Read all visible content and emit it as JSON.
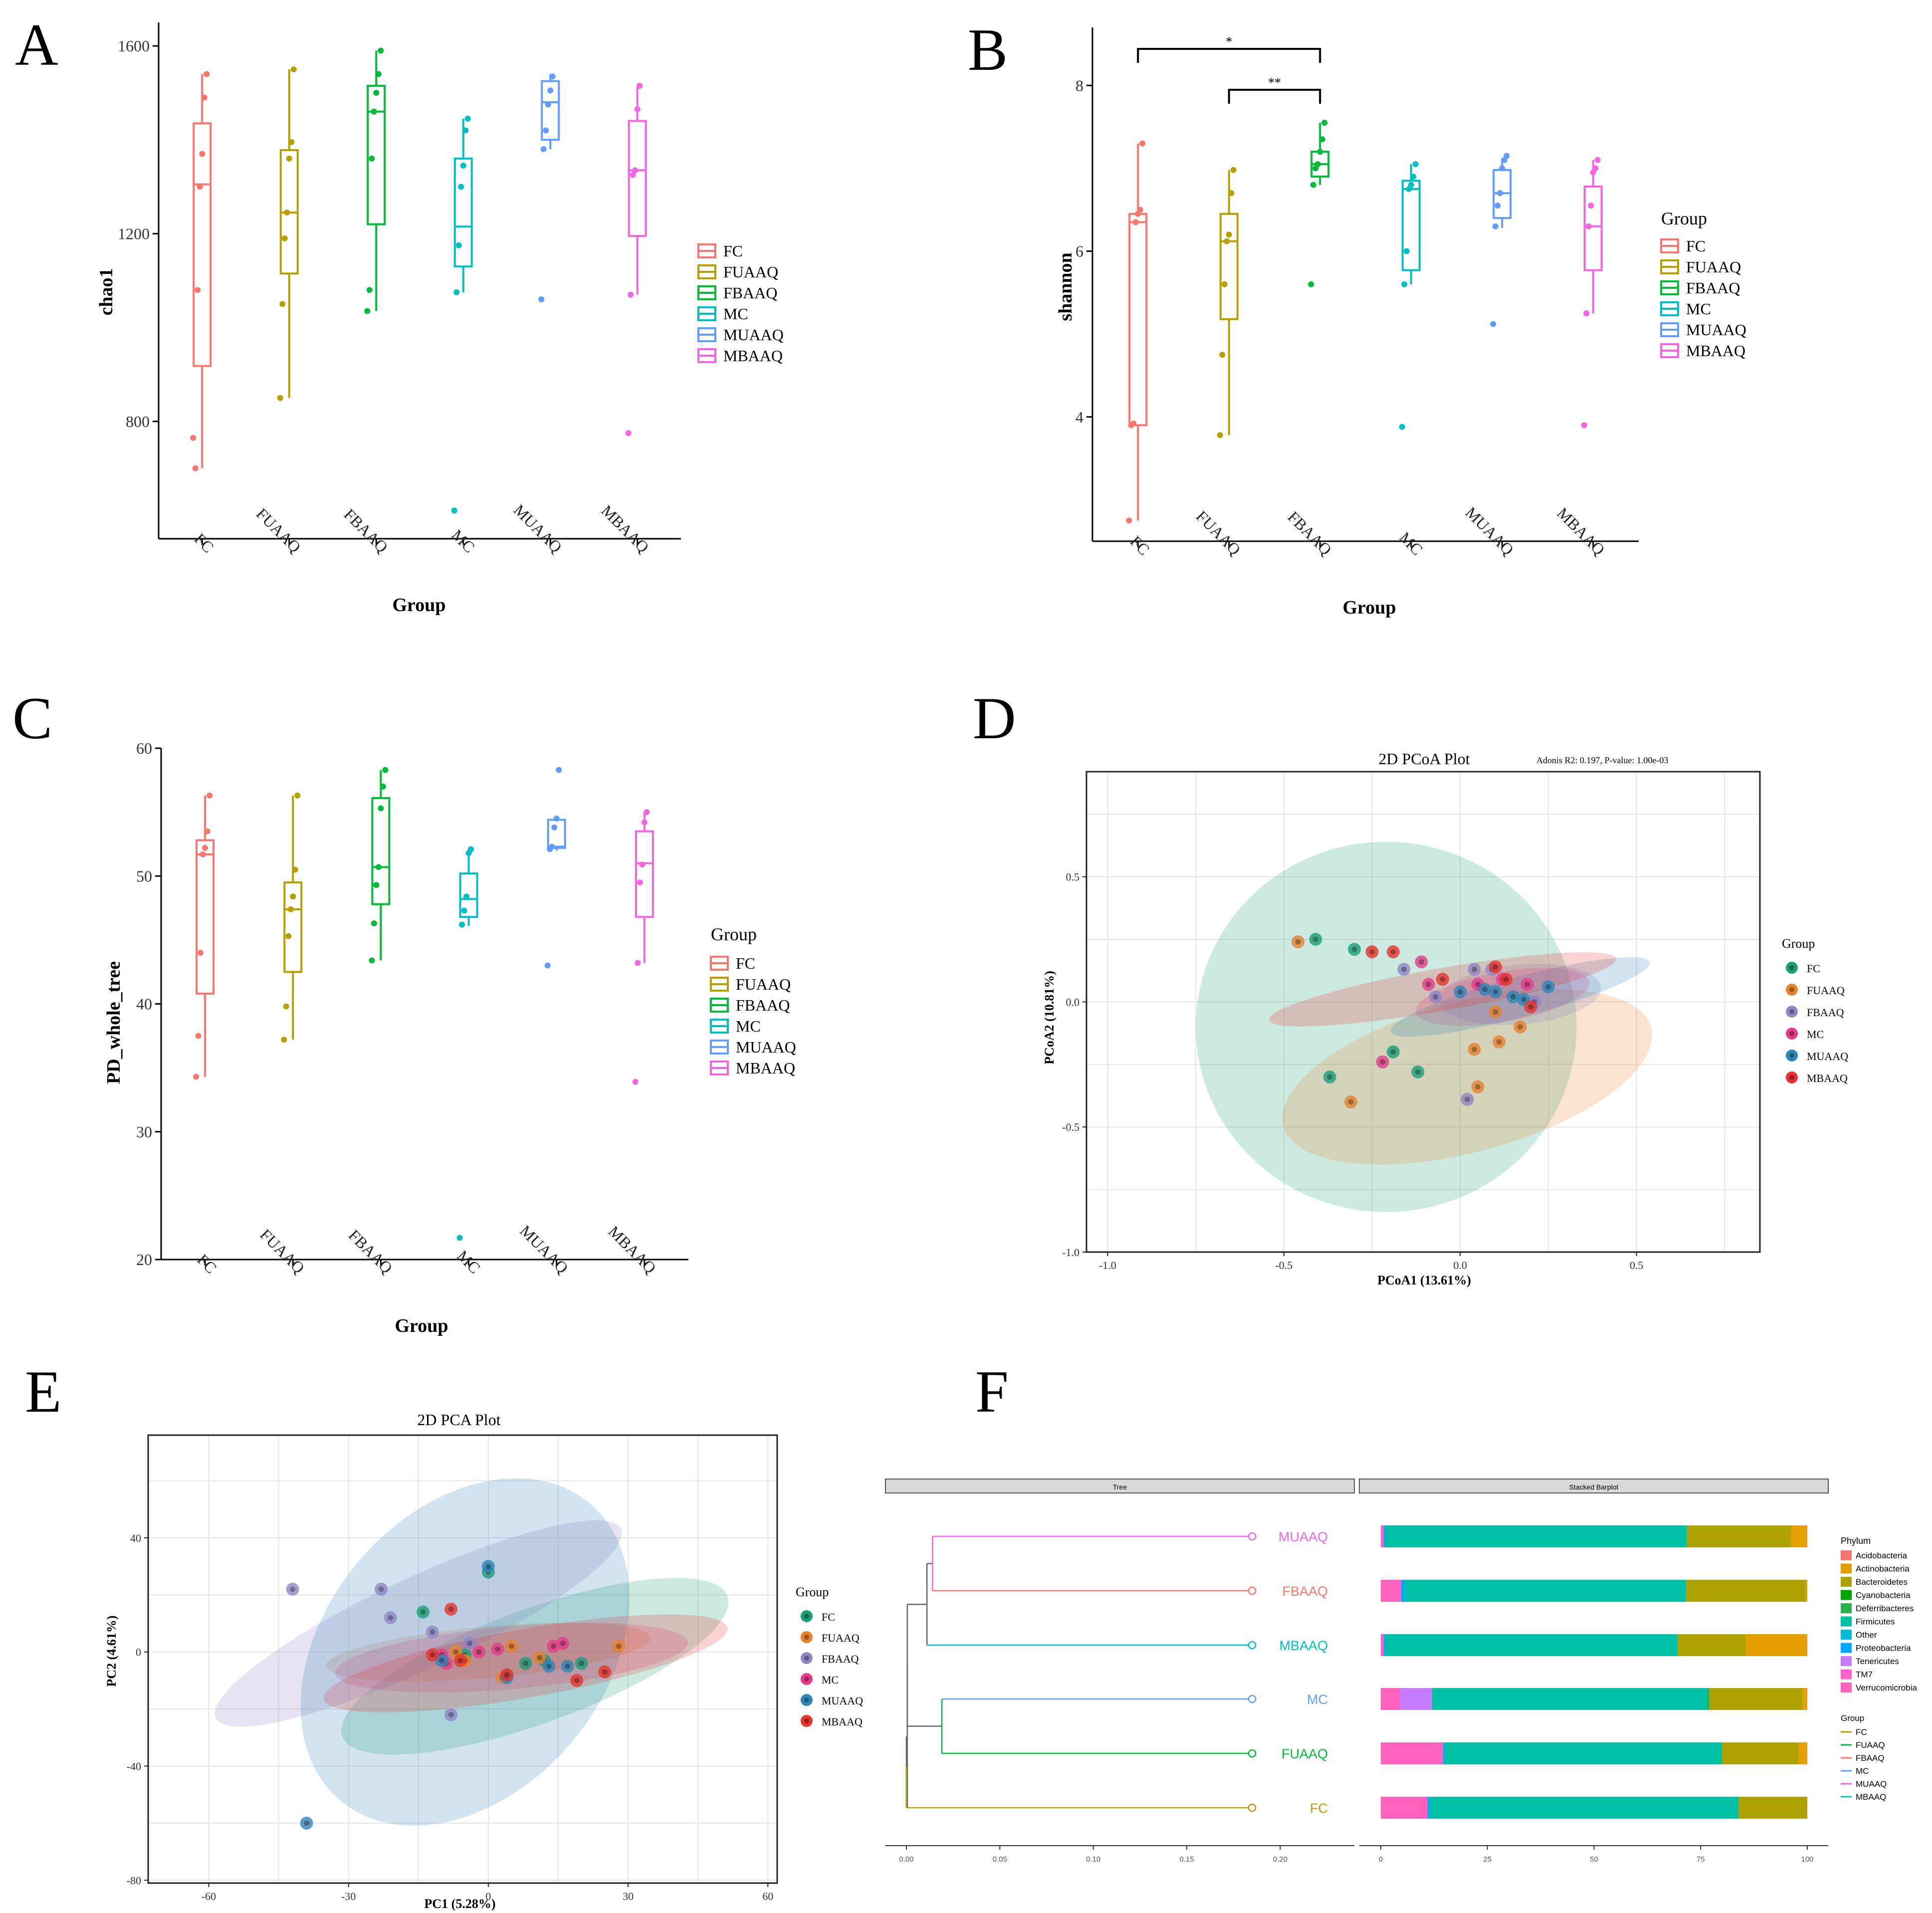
{
  "groups": [
    "FC",
    "FUAAQ",
    "FBAAQ",
    "MC",
    "MUAAQ",
    "MBAAQ"
  ],
  "group_colors": {
    "FC": "#F8766D",
    "FUAAQ": "#B79F00",
    "FBAAQ": "#00BA38",
    "MC": "#00BFC4",
    "MUAAQ": "#619CFF",
    "MBAAQ": "#F564E3"
  },
  "pc_colors": {
    "FC": "#1B9E77",
    "FUAAQ": "#E6822E",
    "FBAAQ": "#8E86C6",
    "MC": "#E33C89",
    "MUAAQ": "#2E86B8",
    "MBAAQ": "#E6332C"
  },
  "panel_labels": {
    "A": "A",
    "B": "B",
    "C": "C",
    "D": "D",
    "E": "E",
    "F": "F"
  },
  "legend_title": "Group",
  "chart_data": [
    {
      "id": "A",
      "type": "box",
      "xlabel": "Group",
      "ylabel": "chao1",
      "ylim": [
        550,
        1650
      ],
      "yticks": [
        800,
        1200,
        1600
      ],
      "categories": [
        "FC",
        "FUAAQ",
        "FBAAQ",
        "MC",
        "MUAAQ",
        "MBAAQ"
      ],
      "boxes": [
        {
          "q1": 918,
          "median": 1305,
          "q3": 1435,
          "whisker_low": 700,
          "whisker_high": 1540,
          "points": [
            765,
            700,
            1080,
            1300,
            1370,
            1490,
            1540
          ]
        },
        {
          "q1": 1115,
          "median": 1245,
          "q3": 1378,
          "whisker_low": 850,
          "whisker_high": 1550,
          "points": [
            850,
            1050,
            1190,
            1245,
            1360,
            1395,
            1550
          ]
        },
        {
          "q1": 1220,
          "median": 1460,
          "q3": 1515,
          "whisker_low": 1035,
          "whisker_high": 1590,
          "points": [
            1035,
            1080,
            1360,
            1460,
            1500,
            1540,
            1590
          ]
        },
        {
          "q1": 1130,
          "median": 1215,
          "q3": 1360,
          "whisker_low": 1075,
          "whisker_high": 1445,
          "points": [
            610,
            1075,
            1175,
            1300,
            1345,
            1420,
            1445
          ]
        },
        {
          "q1": 1400,
          "median": 1480,
          "q3": 1525,
          "whisker_low": 1380,
          "whisker_high": 1540,
          "points": [
            1060,
            1380,
            1420,
            1475,
            1505,
            1535
          ]
        },
        {
          "q1": 1195,
          "median": 1335,
          "q3": 1440,
          "whisker_low": 1070,
          "whisker_high": 1515,
          "points": [
            775,
            1070,
            1325,
            1335,
            1465,
            1515
          ]
        }
      ]
    },
    {
      "id": "B",
      "type": "box",
      "xlabel": "Group",
      "ylabel": "shannon",
      "ylim": [
        2.5,
        8.7
      ],
      "yticks": [
        4,
        6,
        8
      ],
      "categories": [
        "FC",
        "FUAAQ",
        "FBAAQ",
        "MC",
        "MUAAQ",
        "MBAAQ"
      ],
      "boxes": [
        {
          "q1": 3.9,
          "median": 6.35,
          "q3": 6.45,
          "whisker_low": 2.75,
          "whisker_high": 7.3,
          "points": [
            2.75,
            3.9,
            3.92,
            6.35,
            6.45,
            6.5,
            7.3
          ]
        },
        {
          "q1": 5.18,
          "median": 6.12,
          "q3": 6.45,
          "whisker_low": 3.78,
          "whisker_high": 6.98,
          "points": [
            3.78,
            4.75,
            5.6,
            6.12,
            6.2,
            6.7,
            6.98
          ]
        },
        {
          "q1": 6.9,
          "median": 7.05,
          "q3": 7.2,
          "whisker_low": 6.8,
          "whisker_high": 7.55,
          "points": [
            5.6,
            6.8,
            7.0,
            7.05,
            7.2,
            7.35,
            7.55
          ]
        },
        {
          "q1": 5.77,
          "median": 6.75,
          "q3": 6.85,
          "whisker_low": 5.6,
          "whisker_high": 7.05,
          "points": [
            3.88,
            5.6,
            6.0,
            6.75,
            6.8,
            6.9,
            7.05
          ]
        },
        {
          "q1": 6.4,
          "median": 6.7,
          "q3": 6.98,
          "whisker_low": 6.28,
          "whisker_high": 7.12,
          "points": [
            5.12,
            6.3,
            6.55,
            6.7,
            7.0,
            7.1,
            7.15
          ]
        },
        {
          "q1": 5.77,
          "median": 6.3,
          "q3": 6.78,
          "whisker_low": 5.25,
          "whisker_high": 7.1,
          "points": [
            3.9,
            5.25,
            6.3,
            6.55,
            6.95,
            7.0,
            7.1
          ]
        }
      ],
      "significance": [
        {
          "from": "FC",
          "to": "FBAAQ",
          "label": "*"
        },
        {
          "from": "FUAAQ",
          "to": "FBAAQ",
          "label": "**"
        }
      ]
    },
    {
      "id": "C",
      "type": "box",
      "xlabel": "Group",
      "ylabel": "PD_whole_tree",
      "ylim": [
        20,
        60
      ],
      "yticks": [
        20,
        30,
        40,
        50,
        60
      ],
      "categories": [
        "FC",
        "FUAAQ",
        "FBAAQ",
        "MC",
        "MUAAQ",
        "MBAAQ"
      ],
      "boxes": [
        {
          "q1": 40.8,
          "median": 51.7,
          "q3": 52.8,
          "whisker_low": 34.3,
          "whisker_high": 56.3,
          "points": [
            34.3,
            37.5,
            44.0,
            51.7,
            52.2,
            53.5,
            56.3
          ]
        },
        {
          "q1": 42.5,
          "median": 47.4,
          "q3": 49.5,
          "whisker_low": 37.2,
          "whisker_high": 56.3,
          "points": [
            37.2,
            39.8,
            45.3,
            47.4,
            48.4,
            50.5,
            56.3
          ]
        },
        {
          "q1": 47.8,
          "median": 50.7,
          "q3": 56.1,
          "whisker_low": 43.4,
          "whisker_high": 58.3,
          "points": [
            43.4,
            46.3,
            49.3,
            50.7,
            55.3,
            57.0,
            58.3
          ]
        },
        {
          "q1": 46.8,
          "median": 48.2,
          "q3": 50.2,
          "whisker_low": 46.1,
          "whisker_high": 52.1,
          "points": [
            21.7,
            46.2,
            47.3,
            48.4,
            51.8,
            52.1
          ]
        },
        {
          "q1": 52.2,
          "median": 52.3,
          "q3": 54.4,
          "whisker_low": 52.0,
          "whisker_high": 54.6,
          "points": [
            43.0,
            52.1,
            52.3,
            53.8,
            54.5,
            58.3
          ]
        },
        {
          "q1": 46.8,
          "median": 51.0,
          "q3": 53.5,
          "whisker_low": 43.2,
          "whisker_high": 55.0,
          "points": [
            33.9,
            43.2,
            49.5,
            50.9,
            54.2,
            55.0
          ]
        }
      ]
    },
    {
      "id": "D",
      "type": "scatter",
      "title": "2D PCoA Plot",
      "annotation": "Adonis R2: 0.197, P-value: 1.00e-03",
      "xlabel": "PCoA1 (13.61%)",
      "ylabel": "PCoA2 (10.81%)",
      "xlim": [
        -1.06,
        0.85
      ],
      "ylim": [
        -1.0,
        0.92
      ],
      "xticks": [
        -1.0,
        -0.5,
        0.0,
        0.5
      ],
      "yticks": [
        -1.0,
        -0.5,
        0.0,
        0.5
      ],
      "ellipses": [
        {
          "group": "FC",
          "cx": -0.21,
          "cy": -0.1,
          "rx": 0.54,
          "ry": 0.74,
          "angle": 0
        },
        {
          "group": "FUAAQ",
          "cx": 0.02,
          "cy": -0.3,
          "rx": 0.54,
          "ry": 0.3,
          "angle": -15
        },
        {
          "group": "FBAAQ",
          "cx": 0.17,
          "cy": 0.03,
          "rx": 0.23,
          "ry": 0.12,
          "angle": -5
        },
        {
          "group": "MC",
          "cx": 0.12,
          "cy": 0.02,
          "rx": 0.25,
          "ry": 0.1,
          "angle": -10
        },
        {
          "group": "MUAAQ",
          "cx": 0.17,
          "cy": 0.02,
          "rx": 0.38,
          "ry": 0.08,
          "angle": -15
        },
        {
          "group": "MBAAQ",
          "cx": -0.05,
          "cy": 0.05,
          "rx": 0.5,
          "ry": 0.085,
          "angle": -10
        }
      ],
      "points": [
        {
          "group": "FC",
          "x": -0.41,
          "y": 0.25
        },
        {
          "group": "FC",
          "x": -0.3,
          "y": 0.21
        },
        {
          "group": "FC",
          "x": -0.19,
          "y": -0.2
        },
        {
          "group": "FC",
          "x": -0.12,
          "y": -0.28
        },
        {
          "group": "FC",
          "x": -0.37,
          "y": -0.3
        },
        {
          "group": "FUAAQ",
          "x": -0.46,
          "y": 0.24
        },
        {
          "group": "FUAAQ",
          "x": 0.17,
          "y": -0.1
        },
        {
          "group": "FUAAQ",
          "x": 0.11,
          "y": -0.16
        },
        {
          "group": "FUAAQ",
          "x": 0.04,
          "y": -0.19
        },
        {
          "group": "FUAAQ",
          "x": 0.05,
          "y": -0.34
        },
        {
          "group": "FUAAQ",
          "x": -0.31,
          "y": -0.4
        },
        {
          "group": "FUAAQ",
          "x": 0.1,
          "y": -0.04
        },
        {
          "group": "FBAAQ",
          "x": -0.16,
          "y": 0.13
        },
        {
          "group": "FBAAQ",
          "x": -0.07,
          "y": 0.02
        },
        {
          "group": "FBAAQ",
          "x": 0.02,
          "y": -0.39
        },
        {
          "group": "FBAAQ",
          "x": 0.04,
          "y": 0.13
        },
        {
          "group": "FBAAQ",
          "x": 0.09,
          "y": 0.13
        },
        {
          "group": "FBAAQ",
          "x": 0.21,
          "y": 0.0
        },
        {
          "group": "MC",
          "x": -0.11,
          "y": 0.16
        },
        {
          "group": "MC",
          "x": -0.09,
          "y": 0.07
        },
        {
          "group": "MC",
          "x": 0.05,
          "y": 0.07
        },
        {
          "group": "MC",
          "x": 0.12,
          "y": 0.09
        },
        {
          "group": "MC",
          "x": 0.19,
          "y": 0.07
        },
        {
          "group": "MC",
          "x": -0.22,
          "y": -0.24
        },
        {
          "group": "MUAAQ",
          "x": 0.1,
          "y": 0.04
        },
        {
          "group": "MUAAQ",
          "x": 0.15,
          "y": 0.02
        },
        {
          "group": "MUAAQ",
          "x": 0.25,
          "y": 0.06
        },
        {
          "group": "MUAAQ",
          "x": 0.0,
          "y": 0.04
        },
        {
          "group": "MUAAQ",
          "x": 0.07,
          "y": 0.05
        },
        {
          "group": "MUAAQ",
          "x": 0.18,
          "y": 0.01
        },
        {
          "group": "MBAAQ",
          "x": -0.25,
          "y": 0.2
        },
        {
          "group": "MBAAQ",
          "x": -0.19,
          "y": 0.2
        },
        {
          "group": "MBAAQ",
          "x": -0.05,
          "y": 0.09
        },
        {
          "group": "MBAAQ",
          "x": 0.1,
          "y": 0.14
        },
        {
          "group": "MBAAQ",
          "x": 0.13,
          "y": 0.09
        },
        {
          "group": "MBAAQ",
          "x": 0.2,
          "y": -0.02
        }
      ]
    },
    {
      "id": "E",
      "type": "scatter",
      "title": "2D PCA Plot",
      "xlabel": "PC1 (5.28%)",
      "ylabel": "PC2 (4.61%)",
      "xlim": [
        -73,
        62
      ],
      "ylim": [
        -81,
        76
      ],
      "xticks": [
        -60,
        -30,
        0,
        30,
        60
      ],
      "yticks": [
        -80,
        -40,
        0,
        40
      ],
      "ellipses": [
        {
          "group": "FC",
          "cx": 10,
          "cy": -5,
          "rx": 44,
          "ry": 20,
          "angle": -20
        },
        {
          "group": "FUAAQ",
          "cx": 0,
          "cy": 0,
          "rx": 35,
          "ry": 9,
          "angle": -5
        },
        {
          "group": "FBAAQ",
          "cx": -15,
          "cy": 10,
          "rx": 48,
          "ry": 16,
          "angle": -25
        },
        {
          "group": "MC",
          "cx": 5,
          "cy": -2,
          "rx": 38,
          "ry": 11,
          "angle": -5
        },
        {
          "group": "MUAAQ",
          "cx": -5,
          "cy": 0,
          "rx": 30,
          "ry": 68,
          "angle": 40
        },
        {
          "group": "MBAAQ",
          "cx": 8,
          "cy": -4,
          "rx": 44,
          "ry": 12,
          "angle": -10
        }
      ],
      "points": [
        {
          "group": "FC",
          "x": -14,
          "y": 14
        },
        {
          "group": "FC",
          "x": 0,
          "y": 28
        },
        {
          "group": "FC",
          "x": 8,
          "y": -4
        },
        {
          "group": "FC",
          "x": 12,
          "y": -3
        },
        {
          "group": "FC",
          "x": 20,
          "y": -4
        },
        {
          "group": "FC",
          "x": -5,
          "y": -1
        },
        {
          "group": "FUAAQ",
          "x": 28,
          "y": 2
        },
        {
          "group": "FUAAQ",
          "x": 5,
          "y": 2
        },
        {
          "group": "FUAAQ",
          "x": -5,
          "y": -3
        },
        {
          "group": "FUAAQ",
          "x": 11,
          "y": -2
        },
        {
          "group": "FUAAQ",
          "x": -7,
          "y": 0
        },
        {
          "group": "FUAAQ",
          "x": 3,
          "y": -9
        },
        {
          "group": "FBAAQ",
          "x": -42,
          "y": 22
        },
        {
          "group": "FBAAQ",
          "x": -23,
          "y": 22
        },
        {
          "group": "FBAAQ",
          "x": -21,
          "y": 12
        },
        {
          "group": "FBAAQ",
          "x": -12,
          "y": 7
        },
        {
          "group": "FBAAQ",
          "x": -8,
          "y": -22
        },
        {
          "group": "FBAAQ",
          "x": -4,
          "y": 3
        },
        {
          "group": "MC",
          "x": -10,
          "y": -1
        },
        {
          "group": "MC",
          "x": -2,
          "y": 0
        },
        {
          "group": "MC",
          "x": 2,
          "y": 1
        },
        {
          "group": "MC",
          "x": 14,
          "y": 2
        },
        {
          "group": "MC",
          "x": 16,
          "y": 3
        },
        {
          "group": "MC",
          "x": -9,
          "y": -4
        },
        {
          "group": "MUAAQ",
          "x": 0,
          "y": 30
        },
        {
          "group": "MUAAQ",
          "x": -39,
          "y": -60
        },
        {
          "group": "MUAAQ",
          "x": 13,
          "y": -5
        },
        {
          "group": "MUAAQ",
          "x": -10,
          "y": -3
        },
        {
          "group": "MUAAQ",
          "x": 17,
          "y": -5
        },
        {
          "group": "MUAAQ",
          "x": 4,
          "y": -9
        },
        {
          "group": "MBAAQ",
          "x": -8,
          "y": 15
        },
        {
          "group": "MBAAQ",
          "x": -12,
          "y": -1
        },
        {
          "group": "MBAAQ",
          "x": 4,
          "y": -8
        },
        {
          "group": "MBAAQ",
          "x": 19,
          "y": -10
        },
        {
          "group": "MBAAQ",
          "x": 25,
          "y": -7
        },
        {
          "group": "MBAAQ",
          "x": -6,
          "y": -3
        }
      ]
    },
    {
      "id": "F",
      "type": "dendrogram+stacked_bar",
      "strips": {
        "tree": "Tree",
        "bar": "Stacked Barplot"
      },
      "samples": [
        "MUAAQ",
        "FBAAQ",
        "MBAAQ",
        "MC",
        "FUAAQ",
        "FC"
      ],
      "tree_axis": {
        "ticks": [
          "0.00",
          "0.05",
          "0.10",
          "0.15",
          "0.20"
        ],
        "values": [
          0,
          0.05,
          0.1,
          0.15,
          0.2
        ],
        "max": 0.245
      },
      "tree_heights": {
        "root": 0,
        "n1": 0.0,
        "n2": 0.011,
        "n3": 0.012,
        "n4": 0.014,
        "n5": 0.016,
        "n6": 0.019,
        "tips": 0.185
      },
      "bar_axis": {
        "ticks": [
          "0",
          "25",
          "50",
          "75",
          "100"
        ],
        "values": [
          0,
          25,
          50,
          75,
          100
        ]
      },
      "phyla": [
        "Acidobacteria",
        "Actinobacteria",
        "Bacteroidetes",
        "Cyanobacteria",
        "Deferribacteres",
        "Firmicutes",
        "Other",
        "Proteobacteria",
        "Tenericutes",
        "TM7",
        "Verrucomicrobia"
      ],
      "phylum_colors": {
        "Acidobacteria": "#F8766D",
        "Actinobacteria": "#E69F00",
        "Bacteroidetes": "#AEA200",
        "Cyanobacteria": "#00A600",
        "Deferribacteres": "#2BB24A",
        "Firmicutes": "#00C1A5",
        "Other": "#00BBDA",
        "Proteobacteria": "#00A9FF",
        "Tenericutes": "#C77CFF",
        "TM7": "#FF61C9",
        "Verrucomicrobia": "#FF62BC"
      },
      "stack_order": [
        "Verrucomicrobia",
        "TM7",
        "Tenericutes",
        "Proteobacteria",
        "Other",
        "Firmicutes",
        "Deferribacteres",
        "Cyanobacteria",
        "Bacteroidetes",
        "Actinobacteria",
        "Acidobacteria"
      ],
      "composition": {
        "MUAAQ": {
          "Verrucomicrobia": 0.7,
          "Proteobacteria": 0.4,
          "Firmicutes": 70.7,
          "Bacteroidetes": 24.4,
          "Actinobacteria": 3.8
        },
        "FBAAQ": {
          "Verrucomicrobia": 4.8,
          "Proteobacteria": 0.8,
          "Firmicutes": 66.0,
          "Bacteroidetes": 28.0,
          "Actinobacteria": 0.4
        },
        "MBAAQ": {
          "Verrucomicrobia": 0.7,
          "Proteobacteria": 0.4,
          "Firmicutes": 68.5,
          "Bacteroidetes": 16.0,
          "Actinobacteria": 14.4
        },
        "MC": {
          "Verrucomicrobia": 4.5,
          "Tenericutes": 7.5,
          "Firmicutes": 64.6,
          "Deferribacteres": 0.5,
          "Bacteroidetes": 21.8,
          "Actinobacteria": 1.1
        },
        "FUAAQ": {
          "Verrucomicrobia": 14.6,
          "Proteobacteria": 0.4,
          "Firmicutes": 65.0,
          "Bacteroidetes": 18.0,
          "Actinobacteria": 2.0
        },
        "FC": {
          "Verrucomicrobia": 11.0,
          "Proteobacteria": 0.5,
          "Firmicutes": 72.4,
          "Bacteroidetes": 16.1
        }
      },
      "legend_phylum_title": "Phylum",
      "legend_group_title": "Group",
      "legend_group_items": [
        "FC",
        "FUAAQ",
        "FBAAQ",
        "MC",
        "MUAAQ",
        "MBAAQ"
      ]
    }
  ]
}
